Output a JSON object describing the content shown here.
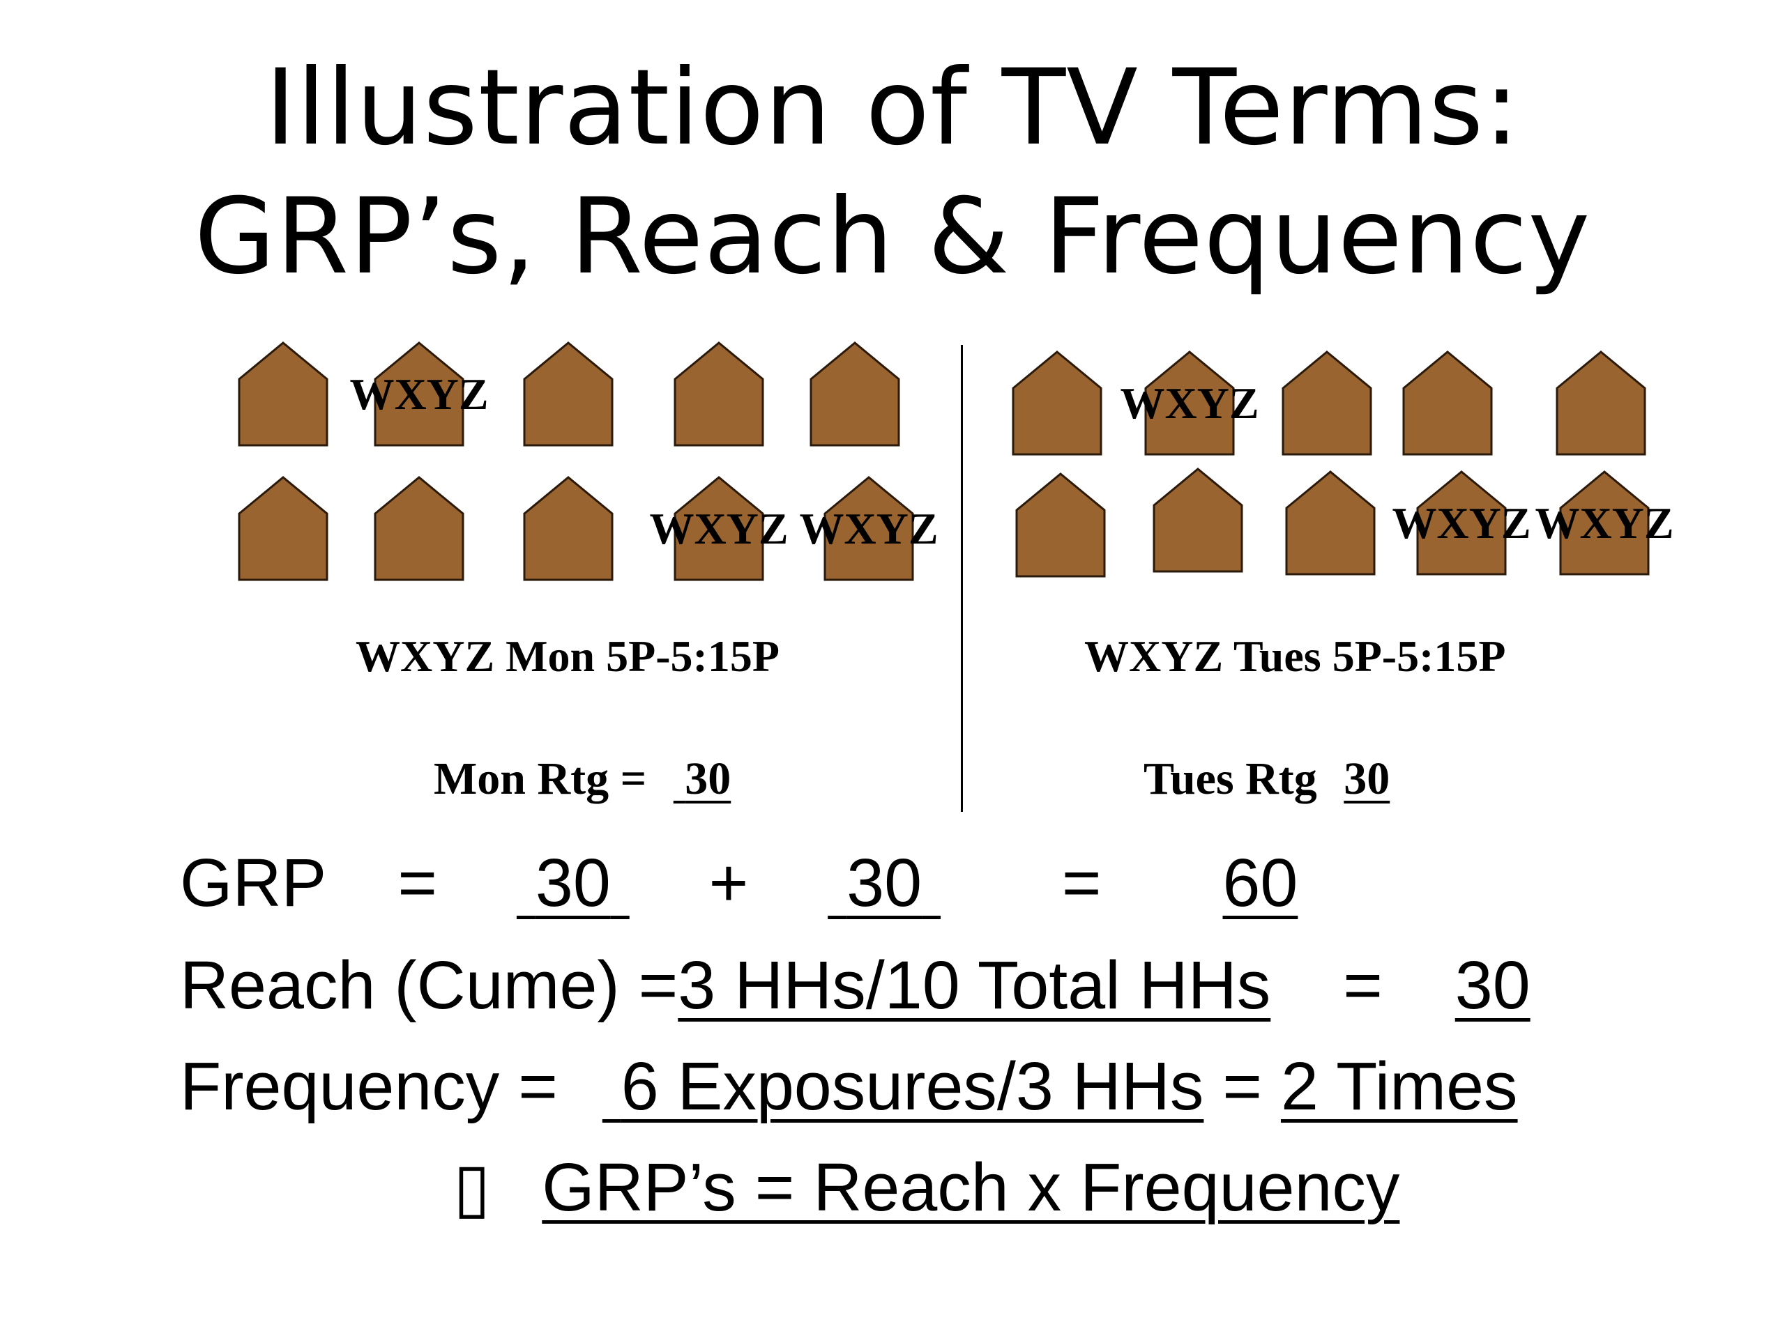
{
  "title": {
    "line1": "Illustration of TV Terms:",
    "line2": "GRP’s, Reach & Frequency"
  },
  "house_label": "WXYZ",
  "left_panel": {
    "caption": "WXYZ Mon 5P-5:15P",
    "rating_label": "Mon Rtg =",
    "rating_value": "30"
  },
  "right_panel": {
    "caption": "WXYZ Tues 5P-5:15P",
    "rating_label": "Tues Rtg",
    "rating_value": "30"
  },
  "grp_line": {
    "label": "GRP",
    "eq1": "=",
    "value1": "30",
    "plus": "+",
    "value2": "30",
    "eq2": "=",
    "total": "60"
  },
  "reach_line": {
    "label": "Reach (Cume) =",
    "fraction": "3 HHs/10 Total HHs",
    "eq": "=",
    "value": "30"
  },
  "frequency_line": {
    "label": "Frequency =",
    "fraction": "6 Exposures/3 HHs",
    "eq": "=",
    "value": "2 Times"
  },
  "summary_line": {
    "bullet": "▯",
    "text": "GRP’s = Reach x Frequency"
  },
  "colors": {
    "house_fill": "#9A6431",
    "house_stroke": "#2B1A0A"
  }
}
